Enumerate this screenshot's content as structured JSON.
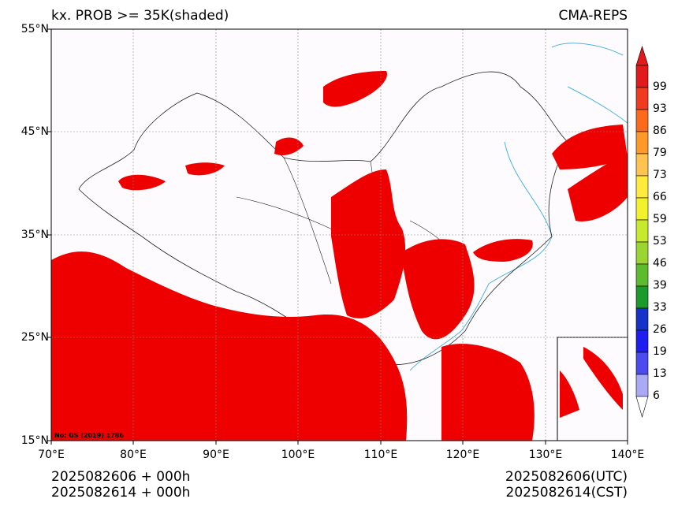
{
  "header": {
    "left_title": "kx. PROB >= 35K(shaded)",
    "right_title": "CMA-REPS"
  },
  "axes": {
    "lat_labels": [
      "55°N",
      "45°N",
      "35°N",
      "25°N",
      "15°N"
    ],
    "lon_labels": [
      "70°E",
      "80°E",
      "90°E",
      "100°E",
      "110°E",
      "120°E",
      "130°E",
      "140°E"
    ]
  },
  "colorbar": {
    "labels": [
      "99",
      "93",
      "86",
      "79",
      "73",
      "66",
      "59",
      "53",
      "46",
      "39",
      "33",
      "26",
      "19",
      "13",
      "6"
    ],
    "colors": [
      "#e31a1c",
      "#f03b20",
      "#fd6a1c",
      "#fe9929",
      "#fec44f",
      "#ffeb3b",
      "#f2f22a",
      "#c7e92e",
      "#9ad531",
      "#5cbc2e",
      "#1a9b2c",
      "#1632c8",
      "#1e1ef0",
      "#4b4bf0",
      "#a9a9f5"
    ]
  },
  "map": {
    "shade_color": "#ee0000",
    "coast_color": "#4fb3e0",
    "border_color": "#222222",
    "attribution": "No: GS (2019) 1786"
  },
  "footer": {
    "left_line1": "2025082606  +  000h",
    "left_line2": "2025082614  +  000h",
    "right_line1": "2025082606(UTC)",
    "right_line2": "2025082614(CST)"
  }
}
